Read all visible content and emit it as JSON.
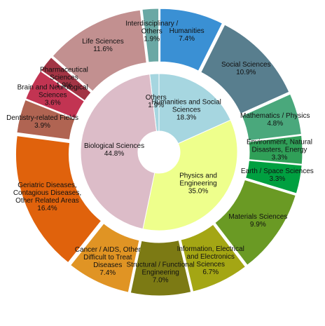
{
  "chart_data": {
    "type": "sunburst",
    "inner": {
      "categories": [
        "Others",
        "Humanities and Social Sciences",
        "Physics and Engineering",
        "Biological Sciences"
      ],
      "values": [
        1.9,
        18.3,
        35.0,
        44.8
      ],
      "value_labels": [
        "1.9%",
        "18.3%",
        "35.0%",
        "44.8%"
      ],
      "colors": [
        "#a6d6e0",
        "#a6d6e0",
        "#eeff8c",
        "#dcbcc8"
      ]
    },
    "outer": {
      "categories": [
        "Interdisciplinary / Others",
        "Humanities",
        "Social Sciences",
        "Mathematics / Physics",
        "Environment, Natural Disasters, Energy",
        "Earth / Space Sciences",
        "Materials Sciences",
        "Information, Electrical and Electronics Sciences",
        "Structural / Functional Engineering",
        "Cancer / AIDS, Other Difficult to Treat Diseases",
        "Geriatric Diseases, Contagious Diseases, Other Related Areas",
        "Dentistry-related Fields",
        "Brain and Neurological Sciences",
        "Pharmaceutical Sciences",
        "Life Sciences"
      ],
      "values": [
        1.9,
        7.4,
        10.9,
        4.8,
        3.3,
        3.3,
        9.9,
        6.7,
        7.0,
        7.4,
        16.4,
        3.9,
        3.6,
        1.9,
        11.6
      ],
      "value_labels": [
        "1.9%",
        "7.4%",
        "10.9%",
        "4.8%",
        "3.3%",
        "3.3%",
        "9.9%",
        "6.7%",
        "7.0%",
        "7.4%",
        "16.4%",
        "3.9%",
        "3.6%",
        "1.9%",
        "11.6%"
      ],
      "colors": [
        "#6aa8a4",
        "#3a90d4",
        "#587e8e",
        "#4aa87c",
        "#30a058",
        "#00a040",
        "#6a9a24",
        "#a4a614",
        "#7c7a14",
        "#e09424",
        "#e0620c",
        "#b06452",
        "#c23452",
        "#a23444",
        "#c29090"
      ]
    }
  }
}
